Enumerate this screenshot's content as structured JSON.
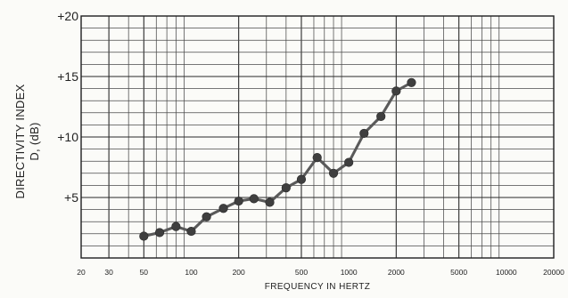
{
  "chart_data": {
    "type": "line",
    "title": "",
    "xlabel": "FREQUENCY IN HERTZ",
    "ylabel": "DIRECTIVITY INDEX",
    "ylabel_secondary": "D, (dB)",
    "x_scale": "log",
    "xlim": [
      20,
      20000
    ],
    "ylim": [
      0,
      20
    ],
    "grid": true,
    "x_ticks": [
      20,
      30,
      50,
      100,
      200,
      500,
      1000,
      2000,
      5000,
      10000,
      20000
    ],
    "x_tick_labels": [
      "20",
      "30",
      "50",
      "100",
      "200",
      "500",
      "1000",
      "2000",
      "5000",
      "10000",
      "20000"
    ],
    "y_ticks": [
      5,
      10,
      15,
      20
    ],
    "y_tick_labels": [
      "+5",
      "+10",
      "+15",
      "+20"
    ],
    "series": [
      {
        "x": [
          50,
          63,
          80,
          100,
          125,
          160,
          200,
          250,
          315,
          400,
          500,
          630,
          800,
          1000,
          1250,
          1600,
          2000,
          2500
        ],
        "y": [
          1.8,
          2.1,
          2.6,
          2.2,
          3.4,
          4.1,
          4.7,
          4.9,
          4.6,
          5.8,
          6.5,
          8.3,
          7.0,
          7.9,
          10.3,
          11.7,
          13.8,
          14.5
        ]
      }
    ]
  }
}
